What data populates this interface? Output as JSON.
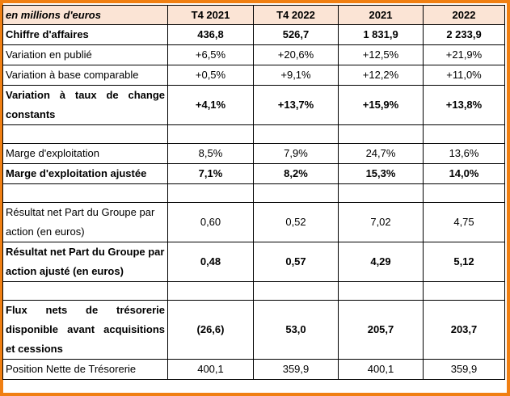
{
  "table": {
    "header": {
      "label": "en millions d'euros",
      "cols": [
        "T4 2021",
        "T4 2022",
        "2021",
        "2022"
      ]
    },
    "rows": [
      {
        "label": "Chiffre d'affaires",
        "values": [
          "436,8",
          "526,7",
          "1 831,9",
          "2 233,9"
        ]
      },
      {
        "label": "Variation en publié",
        "values": [
          "+6,5%",
          "+20,6%",
          "+12,5%",
          "+21,9%"
        ]
      },
      {
        "label": "Variation à base comparable",
        "values": [
          "+0,5%",
          "+9,1%",
          "+12,2%",
          "+11,0%"
        ]
      },
      {
        "label": "Variation à taux de change constants",
        "values": [
          "+4,1%",
          "+13,7%",
          "+15,9%",
          "+13,8%"
        ]
      },
      {
        "label": "Marge d'exploitation",
        "values": [
          "8,5%",
          "7,9%",
          "24,7%",
          "13,6%"
        ]
      },
      {
        "label": "Marge d'exploitation ajustée",
        "values": [
          "7,1%",
          "8,2%",
          "15,3%",
          "14,0%"
        ]
      },
      {
        "label": "Résultat net Part du Groupe par action (en euros)",
        "values": [
          "0,60",
          "0,52",
          "7,02",
          "4,75"
        ]
      },
      {
        "label": "Résultat net Part du Groupe par action ajusté (en euros)",
        "values": [
          "0,48",
          "0,57",
          "4,29",
          "5,12"
        ]
      },
      {
        "label": "Flux nets de trésorerie disponible avant acquisitions et cessions",
        "values": [
          "(26,6)",
          "53,0",
          "205,7",
          "203,7"
        ]
      },
      {
        "label": "Position Nette de Trésorerie",
        "values": [
          "400,1",
          "359,9",
          "400,1",
          "359,9"
        ]
      }
    ]
  }
}
